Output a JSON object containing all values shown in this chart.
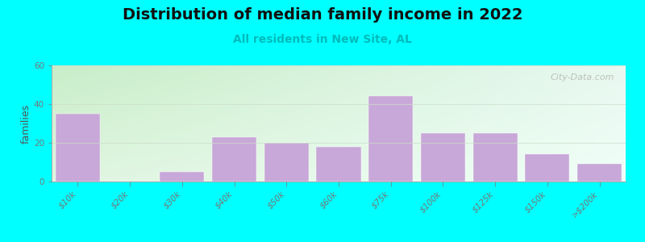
{
  "title": "Distribution of median family income in 2022",
  "subtitle": "All residents in New Site, AL",
  "ylabel": "families",
  "categories": [
    "$10k",
    "$20k",
    "$30k",
    "$40k",
    "$50k",
    "$60k",
    "$75k",
    "$100k",
    "$125k",
    "$150k",
    ">$200k"
  ],
  "values": [
    35,
    0,
    5,
    23,
    20,
    18,
    44,
    25,
    25,
    14,
    9
  ],
  "bar_color": "#C8A8D8",
  "bar_edgecolor": "#FFFFFF",
  "ylim": [
    0,
    60
  ],
  "yticks": [
    0,
    20,
    40,
    60
  ],
  "background_color": "#00FFFF",
  "plot_bg_top_left": "#C8EEC8",
  "plot_bg_bottom_right": "#F0FFF8",
  "title_fontsize": 14,
  "subtitle_fontsize": 10,
  "subtitle_color": "#00BBBB",
  "ylabel_fontsize": 9,
  "tick_fontsize": 7.5,
  "watermark_text": "City-Data.com",
  "grid_color": "#CCDDCC",
  "spine_color": "#AAAAAA"
}
